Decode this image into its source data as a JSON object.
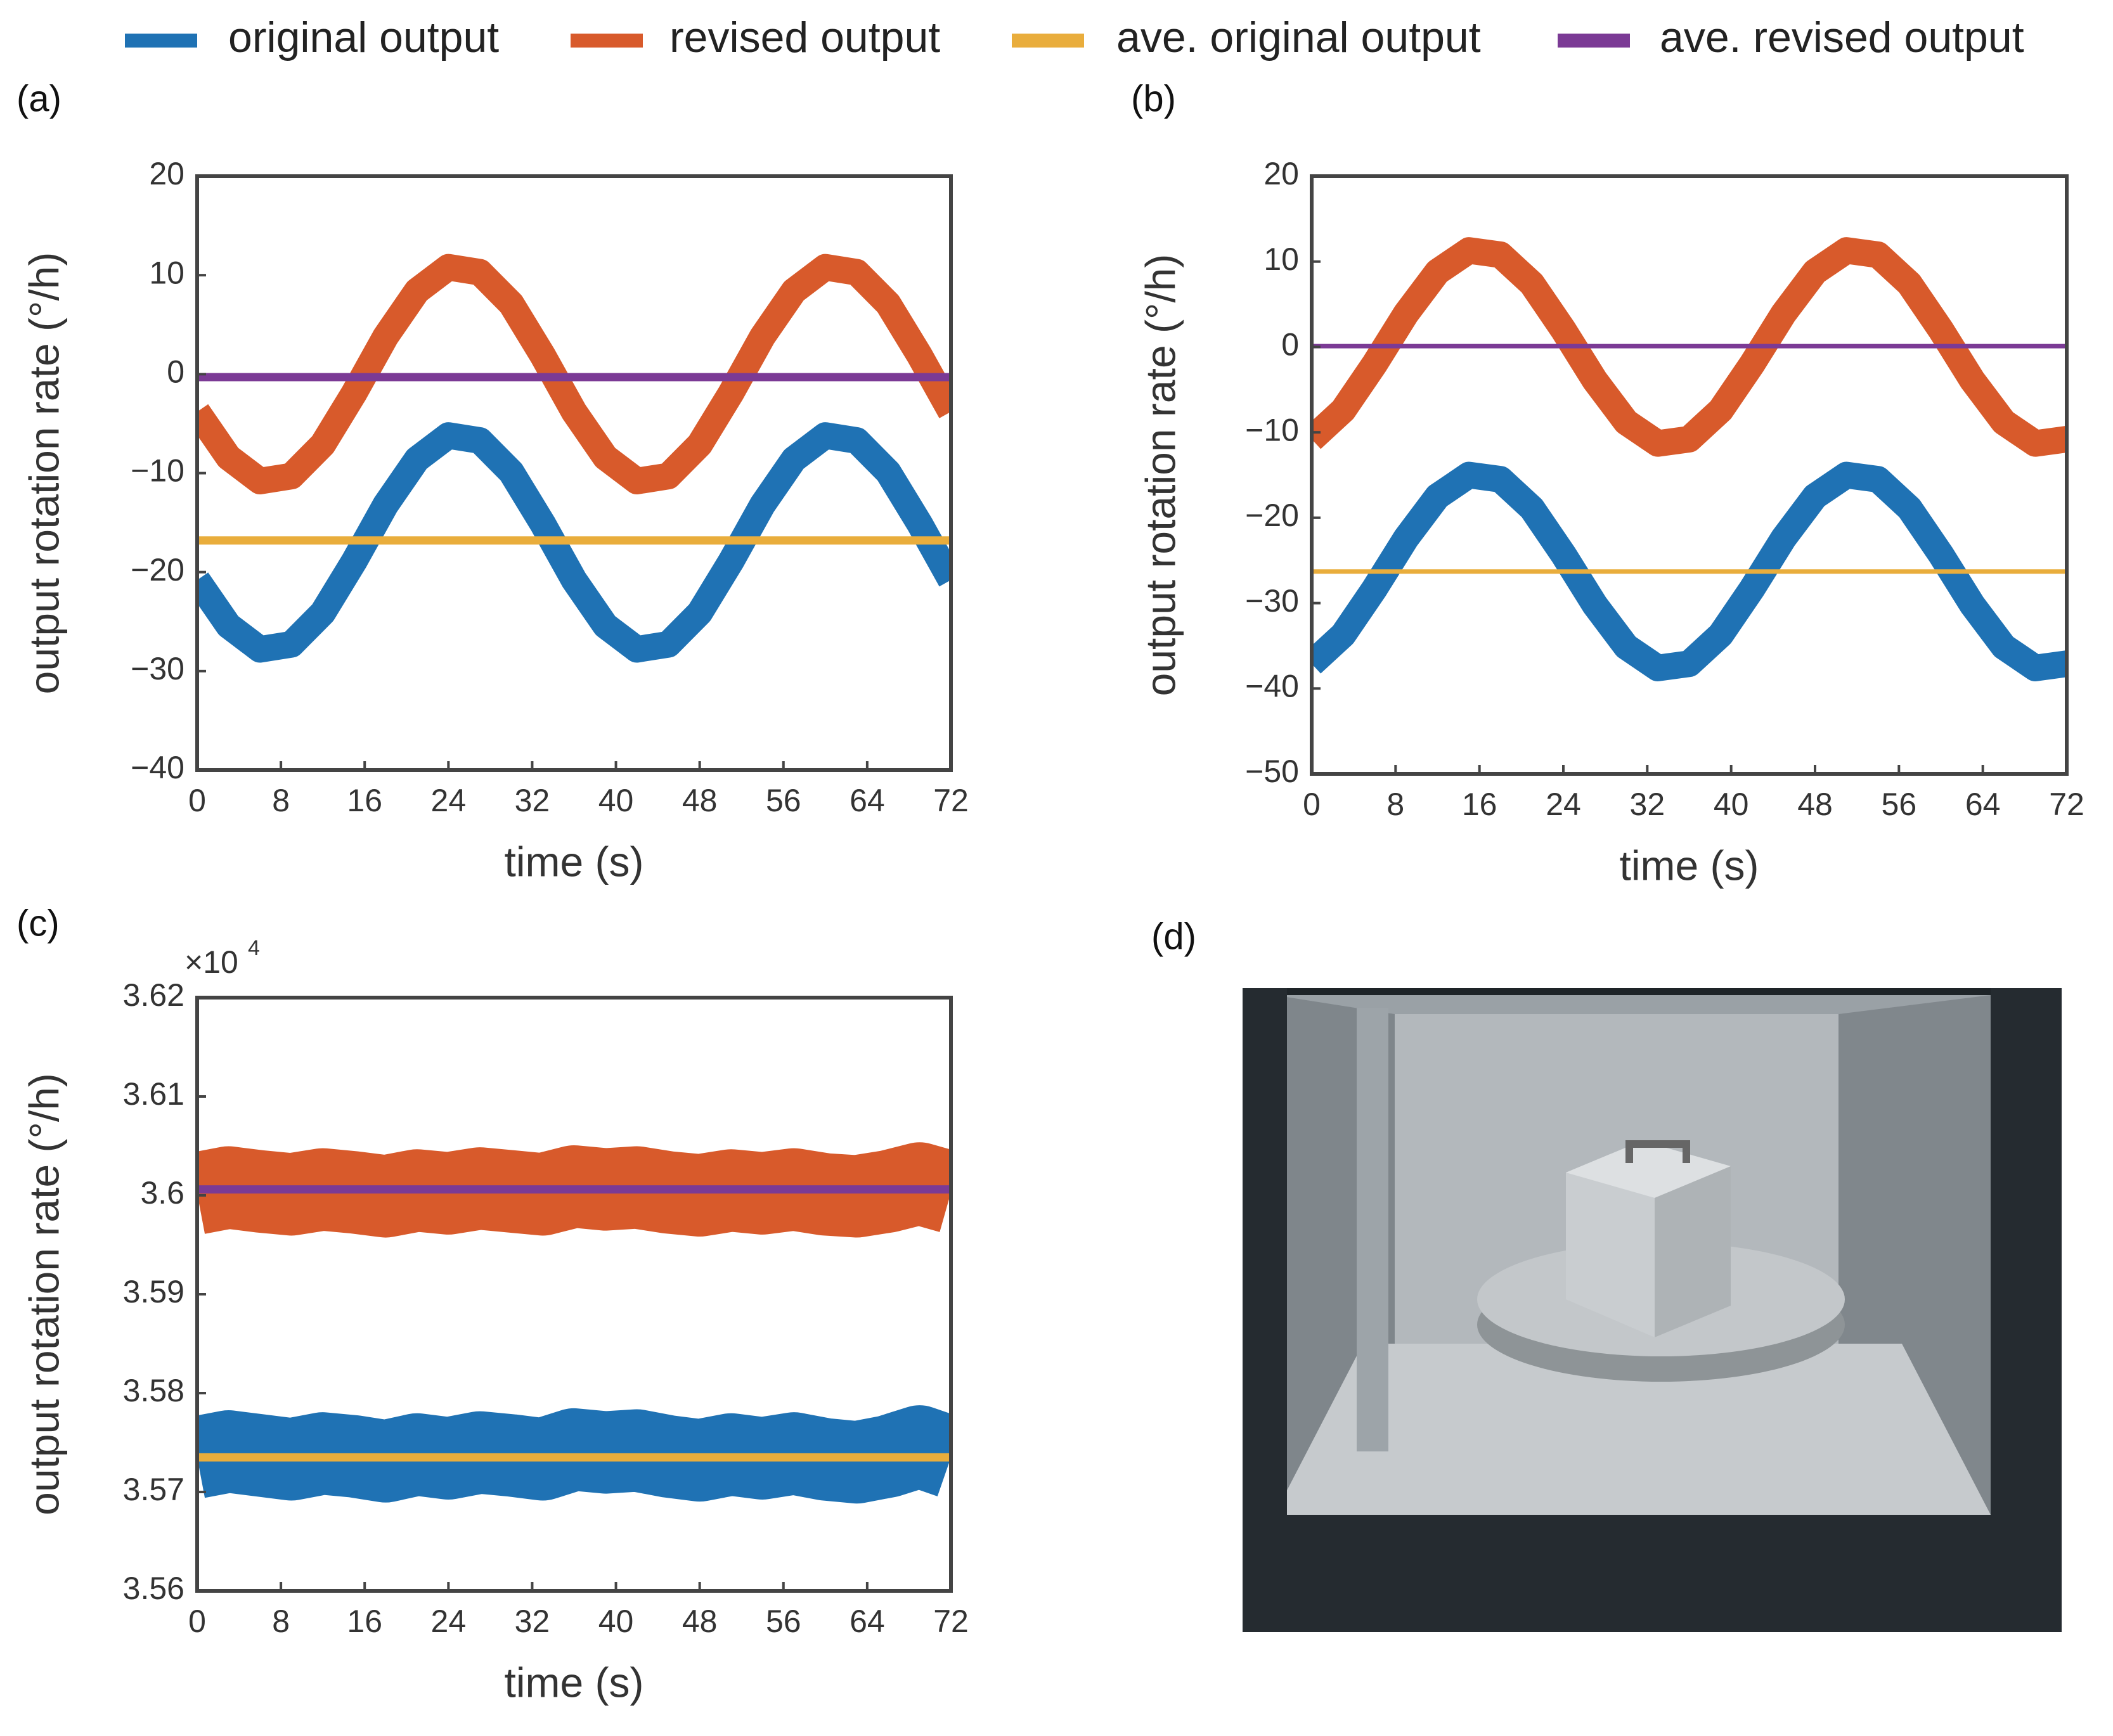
{
  "chart_data": [
    {
      "type": "line",
      "panel": "(a)",
      "xlabel": "time (s)",
      "ylabel": "output rotation rate (°/h)",
      "x": [
        0,
        3,
        6,
        9,
        12,
        15,
        18,
        21,
        24,
        27,
        30,
        33,
        36,
        39,
        42,
        45,
        48,
        51,
        54,
        57,
        60,
        63,
        66,
        69,
        72
      ],
      "xlim": [
        0,
        72
      ],
      "xticks": [
        0,
        8,
        16,
        24,
        32,
        40,
        48,
        56,
        64,
        72
      ],
      "ylim": [
        -40,
        20
      ],
      "yticks": [
        {
          "value": -40,
          "label": "−40"
        },
        {
          "value": -30,
          "label": "−30"
        },
        {
          "value": -20,
          "label": "−20"
        },
        {
          "value": -10,
          "label": "−10"
        },
        0,
        10,
        20
      ],
      "grid": false,
      "series": [
        {
          "name": "original output",
          "color": "#1f72b4",
          "values": [
            -20.8,
            -25.4,
            -27.8,
            -27.3,
            -24.1,
            -18.9,
            -13.2,
            -8.6,
            -6.2,
            -6.7,
            -9.9,
            -15.1,
            -20.8,
            -25.4,
            -27.8,
            -27.3,
            -24.1,
            -18.9,
            -13.2,
            -8.6,
            -6.2,
            -6.7,
            -9.9,
            -15.1,
            -20.8
          ]
        },
        {
          "name": "revised output",
          "color": "#d85a2b",
          "values": [
            -3.8,
            -8.4,
            -10.8,
            -10.3,
            -7.1,
            -1.9,
            3.8,
            8.4,
            10.8,
            10.3,
            7.1,
            1.9,
            -3.8,
            -8.4,
            -10.8,
            -10.3,
            -7.1,
            -1.9,
            3.8,
            8.4,
            10.8,
            10.3,
            7.1,
            1.9,
            -3.8
          ]
        },
        {
          "name": "ave. original output",
          "color": "#e9ad3c",
          "value": -16.8
        },
        {
          "name": "ave. revised output",
          "color": "#7b3a95",
          "value": -0.3
        }
      ]
    },
    {
      "type": "line",
      "panel": "(b)",
      "xlabel": "time (s)",
      "ylabel": "output rotation rate (°/h)",
      "x": [
        0,
        3,
        6,
        9,
        12,
        15,
        18,
        21,
        24,
        27,
        30,
        33,
        36,
        39,
        42,
        45,
        48,
        51,
        54,
        57,
        60,
        63,
        66,
        69,
        72
      ],
      "xlim": [
        0,
        72
      ],
      "xticks": [
        0,
        8,
        16,
        24,
        32,
        40,
        48,
        56,
        64,
        72
      ],
      "ylim": [
        -50,
        20
      ],
      "yticks": [
        {
          "value": -50,
          "label": "−50"
        },
        {
          "value": -40,
          "label": "−40"
        },
        {
          "value": -30,
          "label": "−30"
        },
        {
          "value": -20,
          "label": "−20"
        },
        {
          "value": -10,
          "label": "−10"
        },
        0,
        10,
        20
      ],
      "grid": false,
      "series": [
        {
          "color": "#1f72b4",
          "values": [
            -37.1,
            -33.7,
            -28.3,
            -22.4,
            -17.5,
            -15.0,
            -15.5,
            -18.9,
            -24.3,
            -30.2,
            -35.1,
            -37.6,
            -37.1,
            -33.7,
            -28.3,
            -22.4,
            -17.5,
            -15.0,
            -15.5,
            -18.9,
            -24.3,
            -30.2,
            -35.1,
            -37.6,
            -37.1
          ]
        },
        {
          "color": "#d85a2b",
          "values": [
            -10.8,
            -7.4,
            -2.0,
            3.9,
            8.8,
            11.3,
            10.8,
            7.4,
            2.0,
            -3.9,
            -8.8,
            -11.3,
            -10.8,
            -7.4,
            -2.0,
            3.9,
            8.8,
            11.3,
            10.8,
            7.4,
            2.0,
            -3.9,
            -8.8,
            -11.3,
            -10.8
          ]
        },
        {
          "color": "#e9ad3c",
          "value": -26.3
        },
        {
          "color": "#7b3a95",
          "value": 0.1
        }
      ]
    },
    {
      "type": "line",
      "panel": "(c)",
      "xlabel": "time (s)",
      "ylabel": "output rotation rate (°/h)",
      "y_multiplier": {
        "base": "×10",
        "exponent": "4"
      },
      "x": [
        0,
        3,
        6,
        9,
        12,
        15,
        18,
        21,
        24,
        27,
        30,
        33,
        36,
        39,
        42,
        45,
        48,
        51,
        54,
        57,
        60,
        63,
        66,
        69,
        72
      ],
      "xlim": [
        0,
        72
      ],
      "xticks": [
        0,
        8,
        16,
        24,
        32,
        40,
        48,
        56,
        64,
        72
      ],
      "ylim": [
        3.56,
        3.62
      ],
      "yticks": [
        3.56,
        3.57,
        3.58,
        3.59,
        3.6,
        3.61,
        3.62
      ],
      "grid": false,
      "series": [
        {
          "color": "#d85a2b",
          "values": [
            3.6002,
            3.6008,
            3.6004,
            3.6001,
            3.6006,
            3.6003,
            3.5999,
            3.6005,
            3.6002,
            3.6007,
            3.6004,
            3.6001,
            3.6009,
            3.6006,
            3.6008,
            3.6003,
            3.6,
            3.6005,
            3.6002,
            3.6006,
            3.6001,
            3.5999,
            3.6004,
            3.6012,
            3.6003
          ]
        },
        {
          "color": "#1f72b4",
          "values": [
            3.5735,
            3.5741,
            3.5737,
            3.5733,
            3.5739,
            3.5736,
            3.5731,
            3.5738,
            3.5734,
            3.574,
            3.5737,
            3.5733,
            3.5743,
            3.574,
            3.5742,
            3.5736,
            3.5732,
            3.5738,
            3.5734,
            3.5739,
            3.5733,
            3.573,
            3.5736,
            3.5746,
            3.5735
          ]
        },
        {
          "color": "#e9ad3c",
          "value": 3.5735
        },
        {
          "color": "#7b3a95",
          "value": 3.6006
        }
      ]
    }
  ],
  "photo": {
    "panel": "(d)"
  }
}
